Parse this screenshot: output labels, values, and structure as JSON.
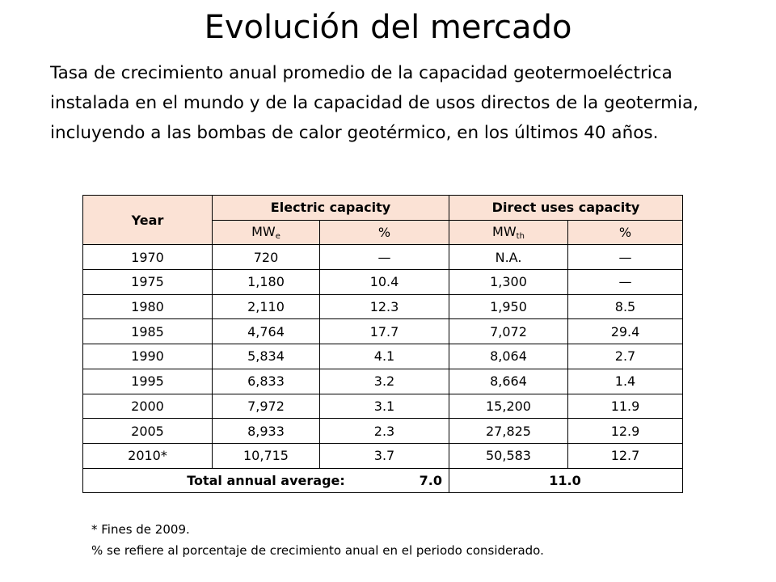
{
  "title": "Evolución del mercado",
  "subtitle": "Tasa de crecimiento anual promedio de la capacidad geotermoeléctrica instalada en el mundo y de la capacidad de usos directos de la geotermia, incluyendo a las bombas de calor geotérmico, en los últimos 40 años.",
  "table": {
    "header": {
      "year": "Year",
      "electric": "Electric capacity",
      "direct": "Direct uses capacity",
      "mwe": "MW",
      "mwe_sub": "e",
      "pct1": "%",
      "mwth": "MW",
      "mwth_sub": "th",
      "pct2": "%"
    },
    "rows": [
      {
        "year": "1970",
        "elec": "720",
        "elec_pct": "—",
        "direct": "N.A.",
        "direct_pct": "—"
      },
      {
        "year": "1975",
        "elec": "1,180",
        "elec_pct": "10.4",
        "direct": "1,300",
        "direct_pct": "—"
      },
      {
        "year": "1980",
        "elec": "2,110",
        "elec_pct": "12.3",
        "direct": "1,950",
        "direct_pct": "8.5"
      },
      {
        "year": "1985",
        "elec": "4,764",
        "elec_pct": "17.7",
        "direct": "7,072",
        "direct_pct": "29.4"
      },
      {
        "year": "1990",
        "elec": "5,834",
        "elec_pct": "4.1",
        "direct": "8,064",
        "direct_pct": "2.7"
      },
      {
        "year": "1995",
        "elec": "6,833",
        "elec_pct": "3.2",
        "direct": "8,664",
        "direct_pct": "1.4"
      },
      {
        "year": "2000",
        "elec": "7,972",
        "elec_pct": "3.1",
        "direct": "15,200",
        "direct_pct": "11.9"
      },
      {
        "year": "2005",
        "elec": "8,933",
        "elec_pct": "2.3",
        "direct": "27,825",
        "direct_pct": "12.9"
      },
      {
        "year": "2010*",
        "elec": "10,715",
        "elec_pct": "3.7",
        "direct": "50,583",
        "direct_pct": "12.7"
      }
    ],
    "total": {
      "label": "Total annual average:",
      "electric": "7.0",
      "direct": "11.0"
    }
  },
  "notes": {
    "note1": "* Fines de 2009.",
    "note2": "% se refiere al porcentaje de crecimiento anual en el periodo considerado."
  },
  "colors": {
    "header_shade": "#fbe2d5"
  }
}
